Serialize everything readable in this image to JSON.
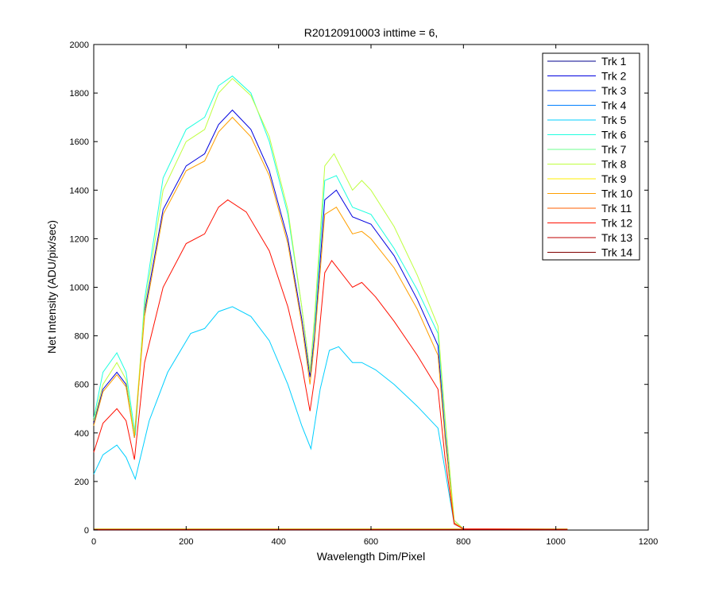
{
  "chart_data": {
    "type": "line",
    "title": "R20120910003 inttime = 6,",
    "xlabel": "Wavelength Dim/Pixel",
    "ylabel": "Net Intensity (ADU/pix/sec)",
    "xlim": [
      0,
      1200
    ],
    "ylim": [
      0,
      2000
    ],
    "xticks": [
      0,
      200,
      400,
      600,
      800,
      1000,
      1200
    ],
    "yticks": [
      0,
      200,
      400,
      600,
      800,
      1000,
      1200,
      1400,
      1600,
      1800,
      2000
    ],
    "grid": false,
    "legend_position": "top-right",
    "series": [
      {
        "name": "Trk 1",
        "color": "#00008F",
        "x": [
          0,
          1025
        ],
        "y": [
          2,
          2
        ]
      },
      {
        "name": "Trk 2",
        "color": "#0000DF",
        "x": [
          0,
          20,
          50,
          70,
          88,
          110,
          150,
          200,
          240,
          270,
          300,
          340,
          380,
          420,
          450,
          468,
          478,
          500,
          525,
          560,
          600,
          650,
          700,
          745,
          760,
          780,
          800,
          1025
        ],
        "y": [
          440,
          580,
          650,
          600,
          380,
          900,
          1320,
          1500,
          1550,
          1670,
          1730,
          1650,
          1480,
          1200,
          870,
          630,
          800,
          1360,
          1400,
          1290,
          1260,
          1130,
          950,
          760,
          400,
          30,
          5,
          3
        ]
      },
      {
        "name": "Trk 3",
        "color": "#002FFF",
        "x": [
          0,
          1025
        ],
        "y": [
          4,
          4
        ]
      },
      {
        "name": "Trk 4",
        "color": "#007FFF",
        "x": [
          0,
          1025
        ],
        "y": [
          3,
          3
        ]
      },
      {
        "name": "Trk 5",
        "color": "#00CFFF",
        "x": [
          0,
          20,
          50,
          70,
          90,
          120,
          160,
          210,
          240,
          270,
          300,
          340,
          380,
          420,
          450,
          470,
          490,
          510,
          530,
          560,
          580,
          610,
          650,
          700,
          745,
          760,
          780,
          800,
          1025
        ],
        "y": [
          230,
          310,
          350,
          300,
          210,
          450,
          650,
          810,
          830,
          900,
          920,
          880,
          780,
          600,
          430,
          335,
          580,
          740,
          755,
          690,
          690,
          660,
          600,
          510,
          420,
          250,
          25,
          5,
          3
        ]
      },
      {
        "name": "Trk 6",
        "color": "#1FFFDF",
        "x": [
          0,
          20,
          50,
          70,
          90,
          110,
          150,
          200,
          240,
          270,
          300,
          340,
          380,
          420,
          450,
          468,
          478,
          500,
          525,
          560,
          600,
          650,
          700,
          745,
          760,
          780,
          800,
          1025
        ],
        "y": [
          460,
          650,
          730,
          650,
          390,
          950,
          1450,
          1650,
          1700,
          1830,
          1870,
          1800,
          1600,
          1300,
          920,
          650,
          850,
          1440,
          1460,
          1330,
          1300,
          1160,
          990,
          810,
          450,
          40,
          5,
          3
        ]
      },
      {
        "name": "Trk 7",
        "color": "#6FFF8F",
        "x": [
          0,
          1025
        ],
        "y": [
          5,
          5
        ]
      },
      {
        "name": "Trk 8",
        "color": "#BFFF3F",
        "x": [
          0,
          20,
          50,
          70,
          88,
          110,
          150,
          200,
          240,
          270,
          300,
          340,
          380,
          420,
          450,
          468,
          478,
          500,
          520,
          560,
          580,
          600,
          650,
          700,
          745,
          760,
          780,
          800,
          1025
        ],
        "y": [
          450,
          600,
          690,
          620,
          390,
          920,
          1400,
          1600,
          1650,
          1800,
          1860,
          1790,
          1620,
          1320,
          920,
          650,
          880,
          1500,
          1550,
          1400,
          1440,
          1400,
          1250,
          1050,
          840,
          470,
          40,
          5,
          3
        ]
      },
      {
        "name": "Trk 9",
        "color": "#FFEF00",
        "x": [
          0,
          1025
        ],
        "y": [
          4,
          4
        ]
      },
      {
        "name": "Trk 10",
        "color": "#FF9F00",
        "x": [
          0,
          20,
          50,
          70,
          88,
          110,
          150,
          200,
          240,
          270,
          300,
          340,
          380,
          420,
          450,
          468,
          478,
          500,
          525,
          560,
          580,
          600,
          650,
          700,
          745,
          760,
          780,
          800,
          1025
        ],
        "y": [
          430,
          570,
          640,
          590,
          380,
          880,
          1300,
          1480,
          1520,
          1640,
          1700,
          1620,
          1460,
          1180,
          850,
          600,
          780,
          1300,
          1330,
          1220,
          1230,
          1200,
          1080,
          910,
          720,
          380,
          30,
          5,
          3
        ]
      },
      {
        "name": "Trk 11",
        "color": "#FF5F00",
        "x": [
          0,
          1025
        ],
        "y": [
          3,
          3
        ]
      },
      {
        "name": "Trk 12",
        "color": "#FF0F00",
        "x": [
          0,
          20,
          50,
          70,
          88,
          110,
          150,
          200,
          240,
          270,
          290,
          330,
          380,
          420,
          450,
          468,
          480,
          500,
          515,
          560,
          580,
          610,
          650,
          700,
          745,
          760,
          780,
          800,
          1025
        ],
        "y": [
          320,
          440,
          500,
          450,
          290,
          690,
          1000,
          1180,
          1220,
          1330,
          1360,
          1310,
          1150,
          920,
          680,
          490,
          650,
          1060,
          1110,
          1000,
          1020,
          960,
          860,
          720,
          580,
          300,
          25,
          5,
          3
        ]
      },
      {
        "name": "Trk 13",
        "color": "#BF0000",
        "x": [
          0,
          1025
        ],
        "y": [
          2,
          2
        ]
      },
      {
        "name": "Trk 14",
        "color": "#800000",
        "x": [
          0,
          1025
        ],
        "y": [
          1,
          1
        ]
      }
    ]
  }
}
